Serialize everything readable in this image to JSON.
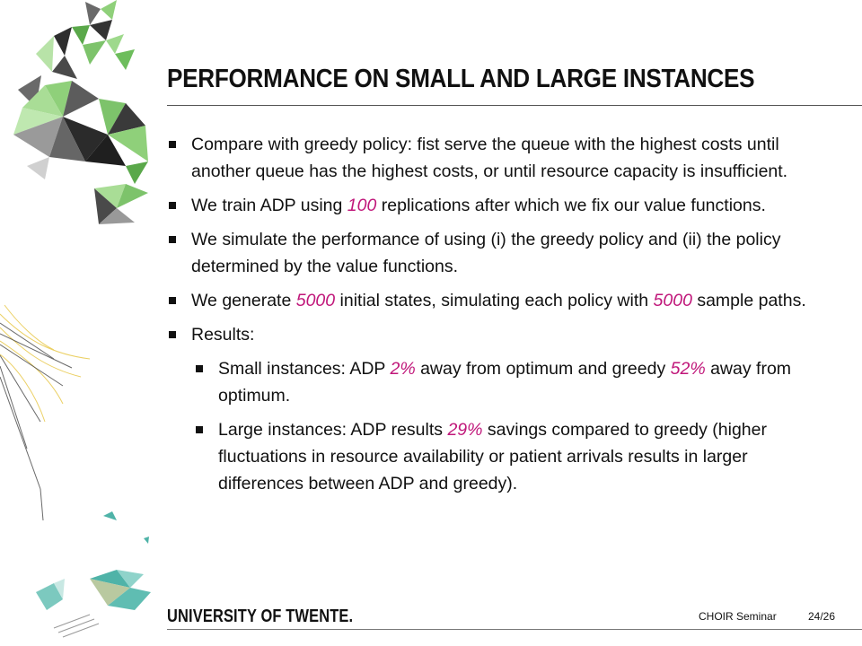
{
  "slide": {
    "title": "PERFORMANCE ON SMALL AND LARGE INSTANCES",
    "bullets": [
      {
        "level": 1,
        "segments": [
          {
            "text": "Compare with greedy policy: fist serve the queue with the highest costs until another queue has the highest costs, or until resource capacity is insufficient."
          }
        ]
      },
      {
        "level": 1,
        "segments": [
          {
            "text": "We train ADP using "
          },
          {
            "text": "100",
            "highlight": true
          },
          {
            "text": " replications after which we fix our value functions."
          }
        ]
      },
      {
        "level": 1,
        "segments": [
          {
            "text": "We simulate the performance of using (i) the greedy policy and (ii) the policy determined by the value functions."
          }
        ]
      },
      {
        "level": 1,
        "segments": [
          {
            "text": "We generate "
          },
          {
            "text": "5000",
            "highlight": true
          },
          {
            "text": " initial states, simulating each policy with "
          },
          {
            "text": "5000",
            "highlight": true
          },
          {
            "text": " sample paths."
          }
        ]
      },
      {
        "level": 1,
        "segments": [
          {
            "text": "Results:"
          }
        ]
      },
      {
        "level": 2,
        "segments": [
          {
            "text": "Small instances: ADP "
          },
          {
            "text": "2%",
            "highlight": true
          },
          {
            "text": " away from optimum and greedy "
          },
          {
            "text": "52%",
            "highlight": true
          },
          {
            "text": " away from optimum."
          }
        ]
      },
      {
        "level": 2,
        "segments": [
          {
            "text": "Large instances: ADP results "
          },
          {
            "text": "29%",
            "highlight": true
          },
          {
            "text": " savings compared to greedy (higher fluctuations in resource availability or patient arrivals results in larger differences between ADP and greedy)."
          }
        ]
      }
    ]
  },
  "footer": {
    "logo": "UNIVERSITY OF TWENTE.",
    "event": "CHOIR  Seminar",
    "page": "24/26"
  },
  "colors": {
    "highlight": "#c0177a",
    "deco_green": "#7dc36b",
    "deco_dark": "#3a3a3a",
    "deco_teal": "#4fb3a8",
    "deco_yellow": "#f2d25c"
  },
  "icons": [
    "bullet-square-icon"
  ]
}
